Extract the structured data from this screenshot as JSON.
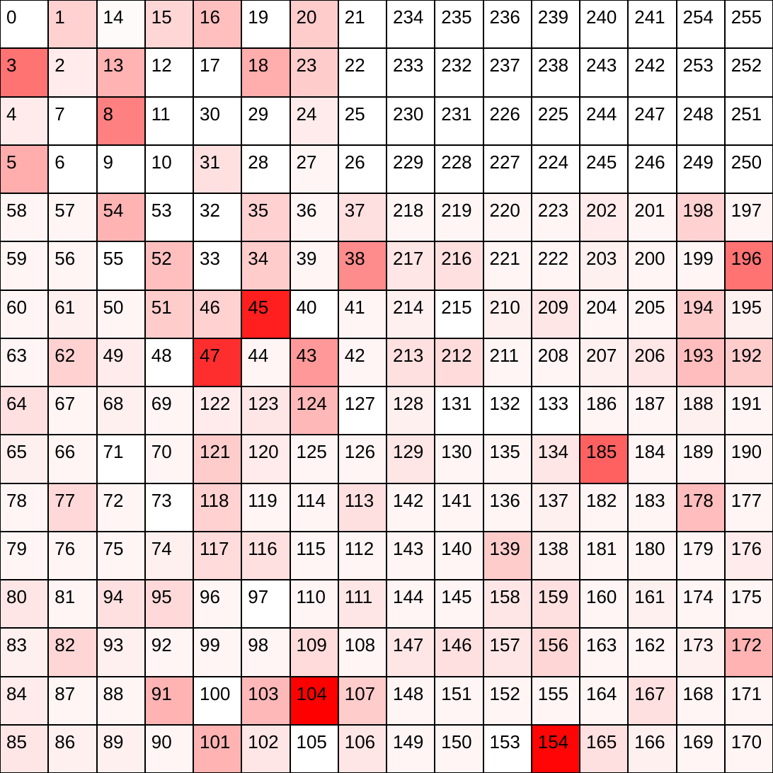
{
  "grid": {
    "rows": [
      [
        [
          0,
          0.0
        ],
        [
          1,
          0.18
        ],
        [
          14,
          0.02
        ],
        [
          15,
          0.16
        ],
        [
          16,
          0.25
        ],
        [
          19,
          0.0
        ],
        [
          20,
          0.2
        ],
        [
          21,
          0.0
        ],
        [
          234,
          0.0
        ],
        [
          235,
          0.0
        ],
        [
          236,
          0.0
        ],
        [
          239,
          0.0
        ],
        [
          240,
          0.0
        ],
        [
          241,
          0.0
        ],
        [
          254,
          0.0
        ],
        [
          255,
          0.0
        ]
      ],
      [
        [
          3,
          0.55
        ],
        [
          2,
          0.08
        ],
        [
          13,
          0.3
        ],
        [
          12,
          0.0
        ],
        [
          17,
          0.0
        ],
        [
          18,
          0.32
        ],
        [
          23,
          0.2
        ],
        [
          22,
          0.0
        ],
        [
          233,
          0.0
        ],
        [
          232,
          0.0
        ],
        [
          237,
          0.0
        ],
        [
          238,
          0.0
        ],
        [
          243,
          0.0
        ],
        [
          242,
          0.0
        ],
        [
          253,
          0.0
        ],
        [
          252,
          0.0
        ]
      ],
      [
        [
          4,
          0.08
        ],
        [
          7,
          0.0
        ],
        [
          8,
          0.5
        ],
        [
          11,
          0.0
        ],
        [
          30,
          0.0
        ],
        [
          29,
          0.0
        ],
        [
          24,
          0.08
        ],
        [
          25,
          0.0
        ],
        [
          230,
          0.0
        ],
        [
          231,
          0.0
        ],
        [
          226,
          0.0
        ],
        [
          225,
          0.0
        ],
        [
          244,
          0.0
        ],
        [
          247,
          0.0
        ],
        [
          248,
          0.0
        ],
        [
          251,
          0.0
        ]
      ],
      [
        [
          5,
          0.32
        ],
        [
          6,
          0.0
        ],
        [
          9,
          0.0
        ],
        [
          10,
          0.0
        ],
        [
          31,
          0.12
        ],
        [
          28,
          0.0
        ],
        [
          27,
          0.04
        ],
        [
          26,
          0.0
        ],
        [
          229,
          0.0
        ],
        [
          228,
          0.0
        ],
        [
          227,
          0.0
        ],
        [
          224,
          0.0
        ],
        [
          245,
          0.0
        ],
        [
          246,
          0.0
        ],
        [
          249,
          0.0
        ],
        [
          250,
          0.0
        ]
      ],
      [
        [
          58,
          0.04
        ],
        [
          57,
          0.04
        ],
        [
          54,
          0.3
        ],
        [
          53,
          0.0
        ],
        [
          32,
          0.0
        ],
        [
          35,
          0.18
        ],
        [
          36,
          0.04
        ],
        [
          37,
          0.12
        ],
        [
          218,
          0.04
        ],
        [
          219,
          0.04
        ],
        [
          220,
          0.04
        ],
        [
          223,
          0.04
        ],
        [
          202,
          0.08
        ],
        [
          201,
          0.04
        ],
        [
          198,
          0.18
        ],
        [
          197,
          0.04
        ]
      ],
      [
        [
          59,
          0.04
        ],
        [
          56,
          0.04
        ],
        [
          55,
          0.0
        ],
        [
          52,
          0.25
        ],
        [
          33,
          0.0
        ],
        [
          34,
          0.2
        ],
        [
          39,
          0.04
        ],
        [
          38,
          0.45
        ],
        [
          217,
          0.1
        ],
        [
          216,
          0.12
        ],
        [
          221,
          0.04
        ],
        [
          222,
          0.04
        ],
        [
          203,
          0.06
        ],
        [
          200,
          0.04
        ],
        [
          199,
          0.04
        ],
        [
          196,
          0.55
        ]
      ],
      [
        [
          60,
          0.04
        ],
        [
          61,
          0.06
        ],
        [
          50,
          0.04
        ],
        [
          51,
          0.2
        ],
        [
          46,
          0.18
        ],
        [
          45,
          0.88
        ],
        [
          40,
          0.0
        ],
        [
          41,
          0.04
        ],
        [
          214,
          0.06
        ],
        [
          215,
          0.0
        ],
        [
          210,
          0.06
        ],
        [
          209,
          0.1
        ],
        [
          204,
          0.04
        ],
        [
          205,
          0.04
        ],
        [
          194,
          0.2
        ],
        [
          195,
          0.06
        ]
      ],
      [
        [
          63,
          0.04
        ],
        [
          62,
          0.18
        ],
        [
          49,
          0.08
        ],
        [
          48,
          0.0
        ],
        [
          47,
          0.82
        ],
        [
          44,
          0.04
        ],
        [
          43,
          0.4
        ],
        [
          42,
          0.04
        ],
        [
          213,
          0.12
        ],
        [
          212,
          0.14
        ],
        [
          211,
          0.04
        ],
        [
          208,
          0.04
        ],
        [
          207,
          0.06
        ],
        [
          206,
          0.1
        ],
        [
          193,
          0.26
        ],
        [
          192,
          0.2
        ]
      ],
      [
        [
          64,
          0.12
        ],
        [
          67,
          0.04
        ],
        [
          68,
          0.06
        ],
        [
          69,
          0.04
        ],
        [
          122,
          0.08
        ],
        [
          123,
          0.1
        ],
        [
          124,
          0.28
        ],
        [
          127,
          0.0
        ],
        [
          128,
          0.06
        ],
        [
          131,
          0.0
        ],
        [
          132,
          0.0
        ],
        [
          133,
          0.0
        ],
        [
          186,
          0.04
        ],
        [
          187,
          0.04
        ],
        [
          188,
          0.06
        ],
        [
          191,
          0.04
        ]
      ],
      [
        [
          65,
          0.06
        ],
        [
          66,
          0.04
        ],
        [
          71,
          0.0
        ],
        [
          70,
          0.04
        ],
        [
          121,
          0.2
        ],
        [
          120,
          0.08
        ],
        [
          125,
          0.04
        ],
        [
          126,
          0.04
        ],
        [
          129,
          0.1
        ],
        [
          130,
          0.04
        ],
        [
          135,
          0.04
        ],
        [
          134,
          0.1
        ],
        [
          185,
          0.62
        ],
        [
          184,
          0.04
        ],
        [
          189,
          0.04
        ],
        [
          190,
          0.04
        ]
      ],
      [
        [
          78,
          0.04
        ],
        [
          77,
          0.15
        ],
        [
          72,
          0.04
        ],
        [
          73,
          0.0
        ],
        [
          118,
          0.18
        ],
        [
          119,
          0.04
        ],
        [
          114,
          0.04
        ],
        [
          113,
          0.12
        ],
        [
          142,
          0.04
        ],
        [
          141,
          0.04
        ],
        [
          136,
          0.04
        ],
        [
          137,
          0.06
        ],
        [
          182,
          0.04
        ],
        [
          183,
          0.04
        ],
        [
          178,
          0.26
        ],
        [
          177,
          0.04
        ]
      ],
      [
        [
          79,
          0.04
        ],
        [
          76,
          0.04
        ],
        [
          75,
          0.04
        ],
        [
          74,
          0.06
        ],
        [
          117,
          0.14
        ],
        [
          116,
          0.12
        ],
        [
          115,
          0.04
        ],
        [
          112,
          0.04
        ],
        [
          143,
          0.04
        ],
        [
          140,
          0.04
        ],
        [
          139,
          0.2
        ],
        [
          138,
          0.06
        ],
        [
          181,
          0.04
        ],
        [
          180,
          0.04
        ],
        [
          179,
          0.04
        ],
        [
          176,
          0.08
        ]
      ],
      [
        [
          80,
          0.1
        ],
        [
          81,
          0.04
        ],
        [
          94,
          0.12
        ],
        [
          95,
          0.15
        ],
        [
          96,
          0.04
        ],
        [
          97,
          0.0
        ],
        [
          110,
          0.04
        ],
        [
          111,
          0.1
        ],
        [
          144,
          0.04
        ],
        [
          145,
          0.04
        ],
        [
          158,
          0.1
        ],
        [
          159,
          0.12
        ],
        [
          160,
          0.04
        ],
        [
          161,
          0.06
        ],
        [
          174,
          0.04
        ],
        [
          175,
          0.04
        ]
      ],
      [
        [
          83,
          0.06
        ],
        [
          82,
          0.16
        ],
        [
          93,
          0.06
        ],
        [
          92,
          0.04
        ],
        [
          99,
          0.04
        ],
        [
          98,
          0.04
        ],
        [
          109,
          0.14
        ],
        [
          108,
          0.04
        ],
        [
          147,
          0.1
        ],
        [
          146,
          0.12
        ],
        [
          157,
          0.1
        ],
        [
          156,
          0.16
        ],
        [
          163,
          0.04
        ],
        [
          162,
          0.04
        ],
        [
          173,
          0.06
        ],
        [
          172,
          0.3
        ]
      ],
      [
        [
          84,
          0.08
        ],
        [
          87,
          0.04
        ],
        [
          88,
          0.04
        ],
        [
          91,
          0.3
        ],
        [
          100,
          0.0
        ],
        [
          103,
          0.28
        ],
        [
          104,
          1.0
        ],
        [
          107,
          0.2
        ],
        [
          148,
          0.04
        ],
        [
          151,
          0.04
        ],
        [
          152,
          0.04
        ],
        [
          155,
          0.04
        ],
        [
          164,
          0.04
        ],
        [
          167,
          0.12
        ],
        [
          168,
          0.04
        ],
        [
          171,
          0.04
        ]
      ],
      [
        [
          85,
          0.1
        ],
        [
          86,
          0.06
        ],
        [
          89,
          0.06
        ],
        [
          90,
          0.04
        ],
        [
          101,
          0.3
        ],
        [
          102,
          0.1
        ],
        [
          105,
          0.0
        ],
        [
          106,
          0.1
        ],
        [
          149,
          0.04
        ],
        [
          150,
          0.04
        ],
        [
          153,
          0.0
        ],
        [
          154,
          0.98
        ],
        [
          165,
          0.12
        ],
        [
          166,
          0.06
        ],
        [
          169,
          0.04
        ],
        [
          170,
          0.04
        ]
      ]
    ]
  }
}
